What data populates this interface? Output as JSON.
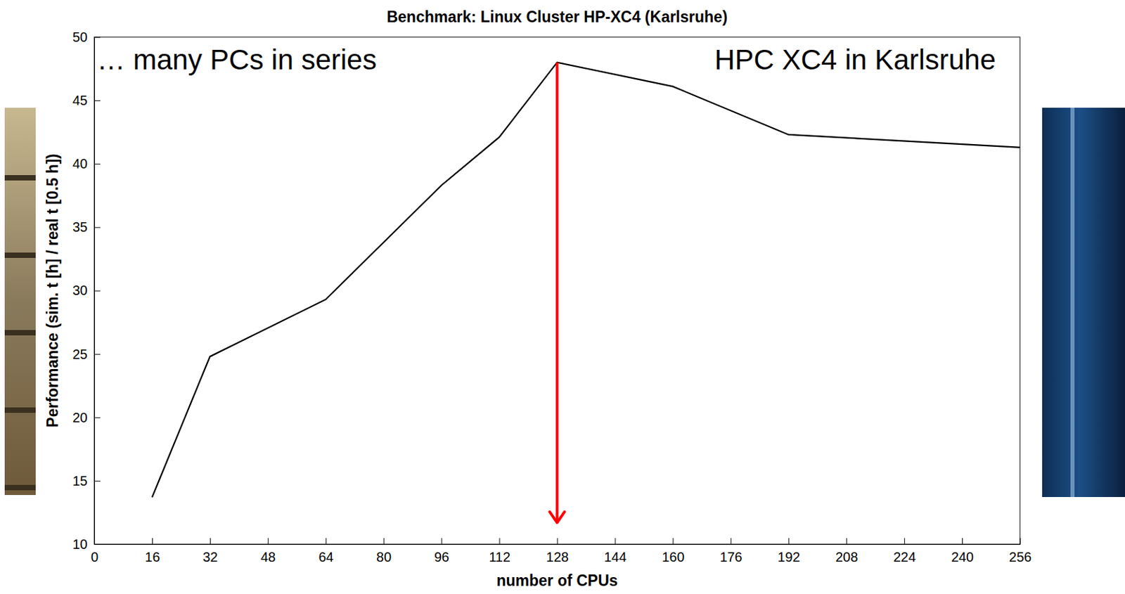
{
  "chart_data": {
    "type": "line",
    "title": "Benchmark: Linux Cluster HP-XC4 (Karlsruhe)",
    "x_label": "number of CPUs",
    "y_label": "Performance (sim. t [h] / real t [0.5 h])",
    "annotations": [
      "… many PCs in series",
      "HPC XC4 in Karlsruhe"
    ],
    "x": [
      16,
      32,
      64,
      96,
      112,
      128,
      160,
      192,
      256
    ],
    "values": [
      13.7,
      24.8,
      29.3,
      38.3,
      42.1,
      48.0,
      46.1,
      42.3,
      41.3
    ],
    "color": "#000000",
    "xlim": [
      0,
      256
    ],
    "xticks": [
      0,
      16,
      32,
      48,
      64,
      80,
      96,
      112,
      128,
      144,
      160,
      176,
      192,
      208,
      224,
      240,
      256
    ],
    "ylim": [
      10,
      50
    ],
    "yticks": [
      10,
      15,
      20,
      25,
      30,
      35,
      40,
      45,
      50
    ],
    "grid": false
  }
}
